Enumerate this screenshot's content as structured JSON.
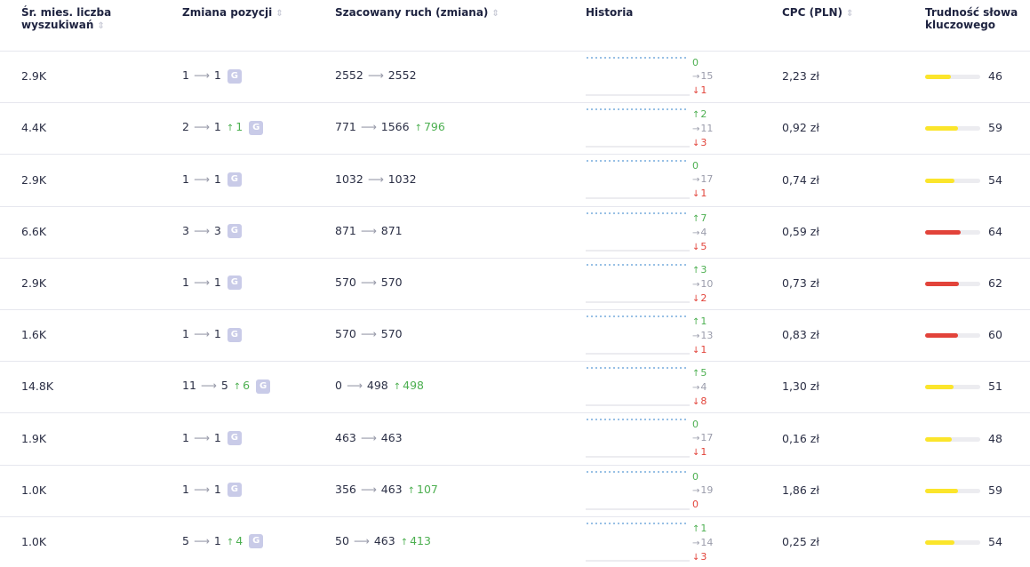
{
  "header": {
    "columns": [
      "Śr. mies. liczba wyszukiwań",
      "Zmiana pozycji",
      "Szacowany ruch (zmiana)",
      "Historia",
      "CPC (PLN)",
      "Trudność słowa kluczowego"
    ]
  },
  "badge": "G",
  "rows": [
    {
      "volume": "2.9K",
      "position": {
        "from": 1,
        "to": 1
      },
      "traffic": {
        "from": 2552,
        "to": 2552
      },
      "history": {
        "up": 0,
        "same": 15,
        "down": 1
      },
      "cpc": "2,23 zł",
      "difficulty": 46,
      "difficulty_color": "#fbe52b"
    },
    {
      "volume": "4.4K",
      "position": {
        "from": 2,
        "to": 1,
        "change": 1
      },
      "traffic": {
        "from": 771,
        "to": 1566,
        "change": 796
      },
      "history": {
        "up": 2,
        "same": 11,
        "down": 3
      },
      "cpc": "0,92 zł",
      "difficulty": 59,
      "difficulty_color": "#fbe52b"
    },
    {
      "volume": "2.9K",
      "position": {
        "from": 1,
        "to": 1
      },
      "traffic": {
        "from": 1032,
        "to": 1032
      },
      "history": {
        "up": 0,
        "same": 17,
        "down": 1
      },
      "cpc": "0,74 zł",
      "difficulty": 54,
      "difficulty_color": "#fbe52b"
    },
    {
      "volume": "6.6K",
      "position": {
        "from": 3,
        "to": 3
      },
      "traffic": {
        "from": 871,
        "to": 871
      },
      "history": {
        "up": 7,
        "same": 4,
        "down": 5
      },
      "cpc": "0,59 zł",
      "difficulty": 64,
      "difficulty_color": "#e2433a"
    },
    {
      "volume": "2.9K",
      "position": {
        "from": 1,
        "to": 1
      },
      "traffic": {
        "from": 570,
        "to": 570
      },
      "history": {
        "up": 3,
        "same": 10,
        "down": 2
      },
      "cpc": "0,73 zł",
      "difficulty": 62,
      "difficulty_color": "#e2433a"
    },
    {
      "volume": "1.6K",
      "position": {
        "from": 1,
        "to": 1
      },
      "traffic": {
        "from": 570,
        "to": 570
      },
      "history": {
        "up": 1,
        "same": 13,
        "down": 1
      },
      "cpc": "0,83 zł",
      "difficulty": 60,
      "difficulty_color": "#e2433a"
    },
    {
      "volume": "14.8K",
      "position": {
        "from": 11,
        "to": 5,
        "change": 6
      },
      "traffic": {
        "from": 0,
        "to": 498,
        "change": 498
      },
      "history": {
        "up": 5,
        "same": 4,
        "down": 8
      },
      "cpc": "1,30 zł",
      "difficulty": 51,
      "difficulty_color": "#fbe52b"
    },
    {
      "volume": "1.9K",
      "position": {
        "from": 1,
        "to": 1
      },
      "traffic": {
        "from": 463,
        "to": 463
      },
      "history": {
        "up": 0,
        "same": 17,
        "down": 1
      },
      "cpc": "0,16 zł",
      "difficulty": 48,
      "difficulty_color": "#fbe52b"
    },
    {
      "volume": "1.0K",
      "position": {
        "from": 1,
        "to": 1
      },
      "traffic": {
        "from": 356,
        "to": 463,
        "change": 107
      },
      "history": {
        "up": 0,
        "same": 19,
        "down": 0
      },
      "cpc": "1,86 zł",
      "difficulty": 59,
      "difficulty_color": "#fbe52b"
    },
    {
      "volume": "1.0K",
      "position": {
        "from": 5,
        "to": 1,
        "change": 4
      },
      "traffic": {
        "from": 50,
        "to": 463,
        "change": 413
      },
      "history": {
        "up": 1,
        "same": 14,
        "down": 3
      },
      "cpc": "0,25 zł",
      "difficulty": 54,
      "difficulty_color": "#fbe52b"
    }
  ]
}
